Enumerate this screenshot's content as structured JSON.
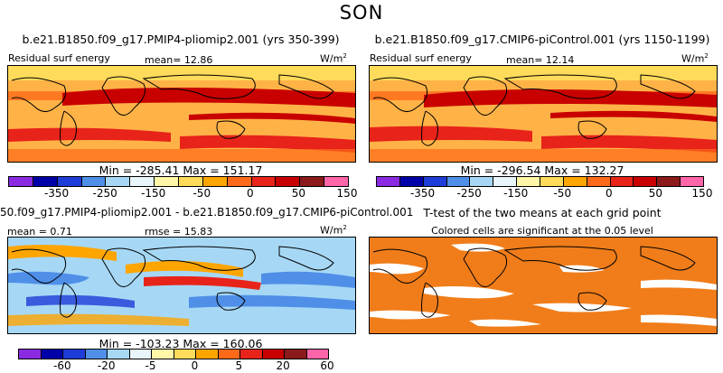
{
  "season": "SON",
  "panels": {
    "top_left": {
      "title": "b.e21.B1850.f09_g17.PMIP4-pliomip2.001 (yrs 350-399)",
      "variable": "Residual surf energy",
      "stat": "mean=  12.86",
      "units": "W/m",
      "units_sup": "2",
      "minmax": "Min = -285.41  Max = 151.17"
    },
    "top_right": {
      "title": "b.e21.B1850.f09_g17.CMIP6-piControl.001 (yrs 1150-1199)",
      "variable": "Residual surf energy",
      "stat": "mean=  12.14",
      "units": "W/m",
      "units_sup": "2",
      "minmax": "Min = -296.54  Max = 132.27"
    },
    "bottom_left": {
      "title": "50.f09_g17.PMIP4-pliomip2.001 - b.e21.B1850.f09_g17.CMIP6-piControl.001",
      "mean": "mean =   0.71",
      "rmse": "rmse =  15.83",
      "units": "W/m",
      "units_sup": "2",
      "minmax": "Min = -103.23  Max = 160.06"
    },
    "bottom_right": {
      "title": "T-test of the two means at each grid point",
      "subtitle": "Colored cells are significant at the 0.05 level"
    }
  },
  "colorbars": {
    "abs_colors": [
      "#8a2be2",
      "#0000a8",
      "#1e3cd7",
      "#4f8fe8",
      "#a6d8f5",
      "#e8f6fb",
      "#fff6a8",
      "#fedb5a",
      "#ffa500",
      "#ff6a1a",
      "#e8231a",
      "#c80000",
      "#8b1a1a",
      "#ff66aa"
    ],
    "abs_ticks": [
      "-350",
      "-250",
      "-150",
      "-50",
      "0",
      "50",
      "150"
    ],
    "diff_colors": [
      "#8a2be2",
      "#0000a8",
      "#1e3cd7",
      "#4f8fe8",
      "#a6d8f5",
      "#e8f6fb",
      "#fff6a8",
      "#fedb5a",
      "#ffa500",
      "#ff6a1a",
      "#e8231a",
      "#c80000",
      "#8b1a1a",
      "#ff66aa"
    ],
    "diff_ticks": [
      "-60",
      "-20",
      "-5",
      "0",
      "5",
      "20",
      "60"
    ]
  },
  "map_colors": {
    "abs_base": "#ffb347",
    "abs_warm": "#e8231a",
    "abs_hot": "#c80000",
    "abs_mid": "#ff6a1a",
    "abs_light": "#fedb5a",
    "diff_base": "#a6d8f5",
    "diff_blue": "#4f8fe8",
    "diff_dark": "#1e3cd7",
    "diff_pos": "#ffa500",
    "diff_red": "#e8231a",
    "ttest": "#f07d1a",
    "land_line": "#000000"
  }
}
